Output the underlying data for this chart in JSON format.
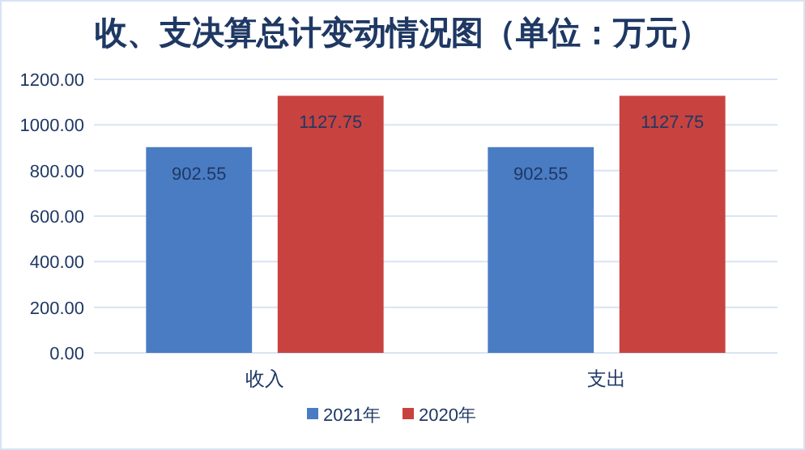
{
  "chart_data": {
    "type": "bar",
    "title": "收、支决算总计变动情况图（单位：万元）",
    "categories": [
      "收入",
      "支出"
    ],
    "series": [
      {
        "name": "2021年",
        "color": "#4a7cc4",
        "values": [
          902.55,
          902.55
        ]
      },
      {
        "name": "2020年",
        "color": "#c8433f",
        "values": [
          1127.75,
          1127.75
        ]
      }
    ],
    "ylim": [
      0,
      1200
    ],
    "yticks": [
      {
        "value": 0,
        "label": "0.00"
      },
      {
        "value": 200,
        "label": "200.00"
      },
      {
        "value": 400,
        "label": "400.00"
      },
      {
        "value": 600,
        "label": "600.00"
      },
      {
        "value": 800,
        "label": "800.00"
      },
      {
        "value": 1000,
        "label": "1000.00"
      },
      {
        "value": 1200,
        "label": "1200.00"
      }
    ],
    "grid": "y",
    "legend": "bottom",
    "data_labels": true
  }
}
